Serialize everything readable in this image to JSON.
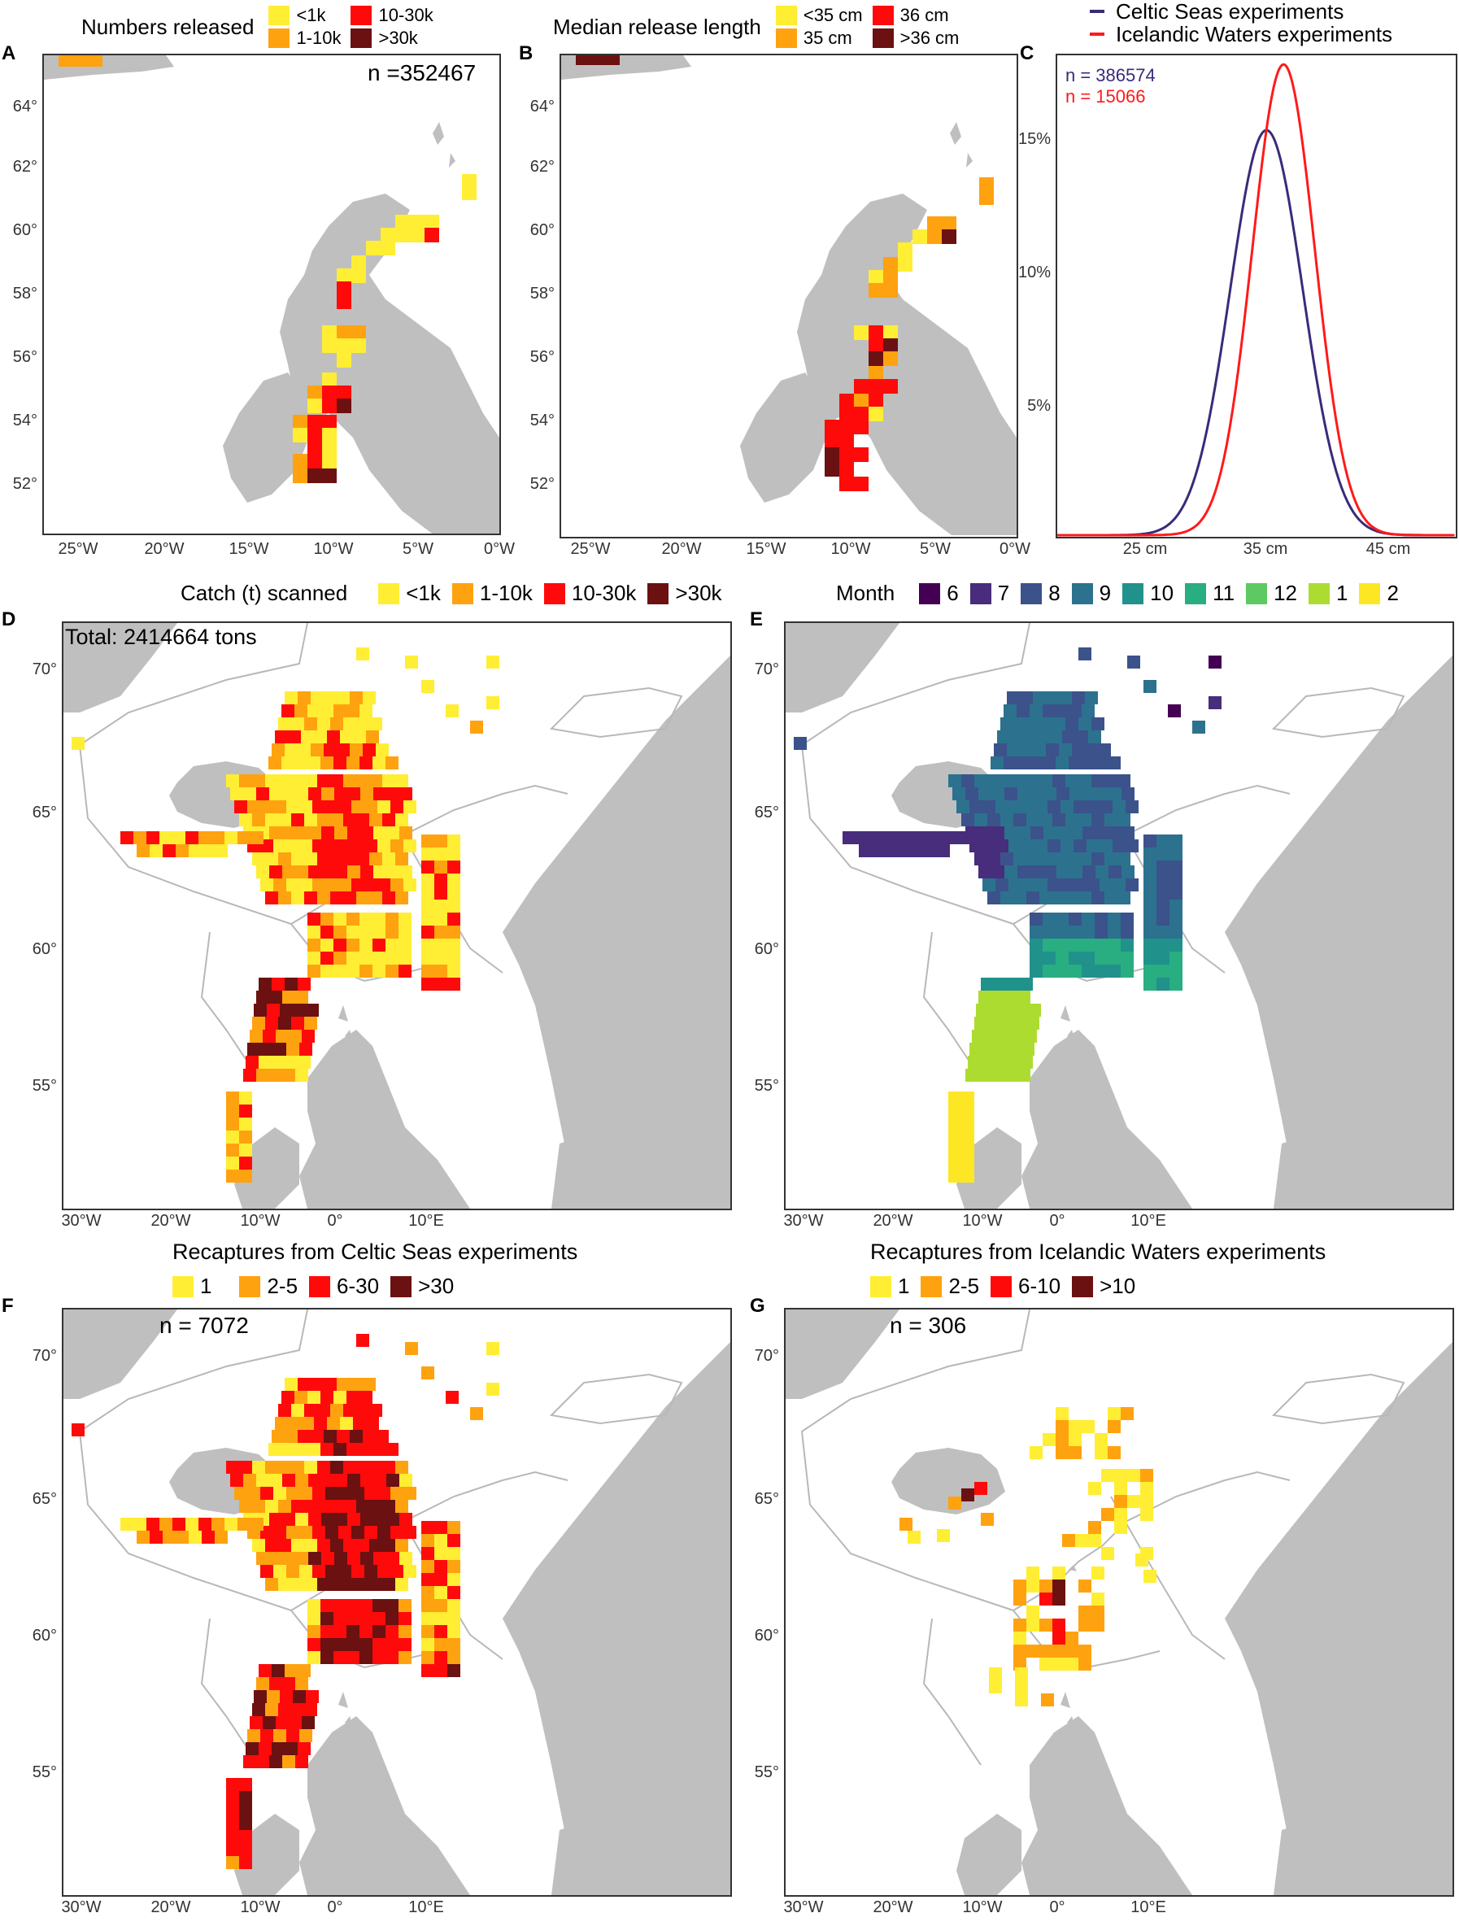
{
  "colors": {
    "land": "#bfbfbf",
    "boundary": "#b8b8b8",
    "c_lt1k": "#ffee33",
    "c_1_10k": "#ffa20f",
    "c_10_30k": "#ff0a0a",
    "c_gt30k": "#6b1111",
    "celtic_line": "#3b2a7a",
    "iceland_line": "#ff1a1a",
    "month_colors": [
      "#440154",
      "#472d7b",
      "#3b528b",
      "#2c728e",
      "#21918c",
      "#28ae80",
      "#5ec962",
      "#addc30",
      "#fde725"
    ]
  },
  "panelA": {
    "letter": "A",
    "legend_title": "Numbers released",
    "legend_items": [
      "<1k",
      "10-30k",
      "1-10k",
      ">30k"
    ],
    "n_text": "n =352467",
    "x_ticks": [
      "25°W",
      "20°W",
      "15°W",
      "10°W",
      "5°W",
      "0°W"
    ],
    "y_ticks": [
      "64°",
      "62°",
      "60°",
      "58°",
      "56°",
      "54°",
      "52°"
    ]
  },
  "panelB": {
    "letter": "B",
    "legend_title": "Median release length",
    "legend_items": [
      "<35 cm",
      "36 cm",
      "35 cm",
      ">36 cm"
    ],
    "x_ticks": [
      "25°W",
      "20°W",
      "15°W",
      "10°W",
      "5°W",
      "0°W"
    ],
    "y_ticks": [
      "64°",
      "62°",
      "60°",
      "58°",
      "56°",
      "54°",
      "52°"
    ]
  },
  "panelC": {
    "letter": "C",
    "legend": [
      "Celtic Seas experiments",
      "Icelandic Waters experiments"
    ],
    "n_celtic": "n = 386574",
    "n_iceland": "n = 15066",
    "x_ticks": [
      "25 cm",
      "35 cm",
      "45 cm"
    ],
    "y_ticks": [
      "15%",
      "10%",
      "5%"
    ],
    "chart_data": {
      "type": "line",
      "x_unit": "cm",
      "series": [
        {
          "name": "Celtic Seas experiments",
          "mean": 35.7,
          "sd": 2.55,
          "peak": 15.4
        },
        {
          "name": "Icelandic Waters experiments",
          "mean": 36.9,
          "sd": 2.2,
          "peak": 17.9
        }
      ],
      "xlim": [
        21,
        49
      ],
      "ylim": [
        0,
        18
      ]
    }
  },
  "panelD": {
    "letter": "D",
    "legend_title": "Catch (t) scanned",
    "legend_items": [
      "<1k",
      "1-10k",
      "10-30k",
      ">30k"
    ],
    "total_text": "Total: 2414664 tons",
    "x_ticks": [
      "30°W",
      "20°W",
      "10°W",
      "0°",
      "10°E"
    ],
    "y_ticks": [
      "70°",
      "65°",
      "60°",
      "55°"
    ]
  },
  "panelE": {
    "letter": "E",
    "legend_title": "Month",
    "legend_items": [
      "6",
      "7",
      "8",
      "9",
      "10",
      "11",
      "12",
      "1",
      "2"
    ],
    "x_ticks": [
      "30°W",
      "20°W",
      "10°W",
      "0°",
      "10°E"
    ],
    "y_ticks": [
      "70°",
      "65°",
      "60°",
      "55°"
    ]
  },
  "panelF": {
    "letter": "F",
    "subtitle": "Recaptures from Celtic Seas experiments",
    "legend_items": [
      "1",
      "2-5",
      "6-30",
      ">30"
    ],
    "n_text": "n = 7072",
    "x_ticks": [
      "30°W",
      "20°W",
      "10°W",
      "0°",
      "10°E"
    ],
    "y_ticks": [
      "70°",
      "65°",
      "60°",
      "55°"
    ]
  },
  "panelG": {
    "letter": "G",
    "subtitle": "Recaptures from Icelandic Waters experiments",
    "legend_items": [
      "1",
      "2-5",
      "6-10",
      ">10"
    ],
    "n_text": "n = 306",
    "x_ticks": [
      "30°W",
      "20°W",
      "10°W",
      "0°",
      "10°E"
    ],
    "y_ticks": [
      "70°",
      "65°",
      "60°",
      "55°"
    ]
  }
}
